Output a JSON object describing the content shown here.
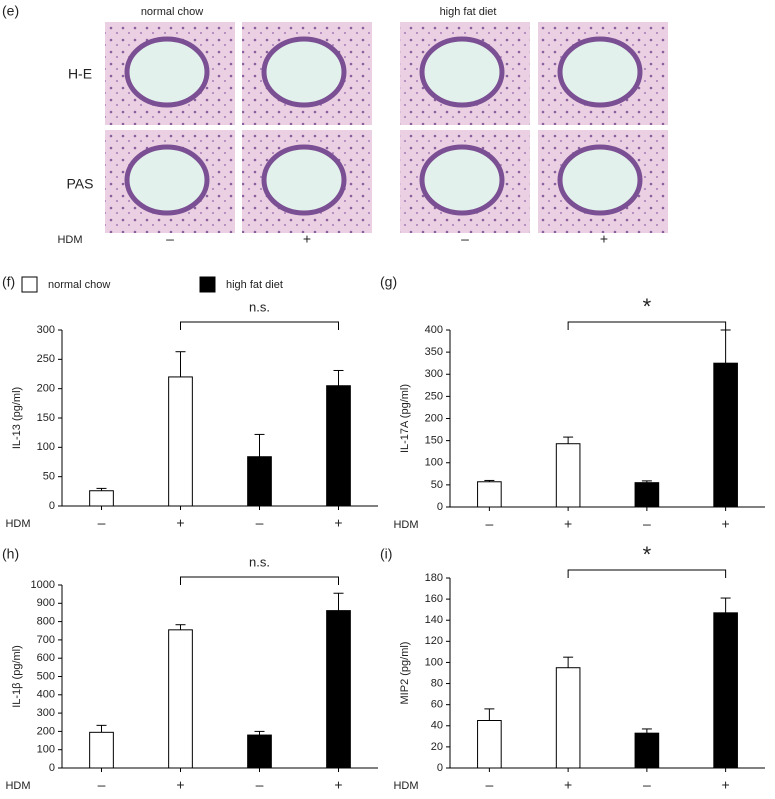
{
  "panel_e": {
    "label": "(e)",
    "groups": [
      "normal chow",
      "high fat diet"
    ],
    "rows": [
      "H-E",
      "PAS"
    ],
    "x_label": "HDM",
    "treatments": [
      "–",
      "+",
      "–",
      "+"
    ]
  },
  "legend": [
    {
      "name": "normal chow",
      "color": "#ffffff"
    },
    {
      "name": "high fat diet",
      "color": "#000000"
    }
  ],
  "chart_data": [
    {
      "type": "bar",
      "panel_label": "(f)",
      "ylabel": "IL-13 (pg/ml)",
      "x_label": "HDM",
      "categories": [
        "–",
        "+",
        "–",
        "+"
      ],
      "values": [
        26,
        220,
        84,
        205
      ],
      "errors": [
        4,
        43,
        38,
        26
      ],
      "colors": [
        "#ffffff",
        "#ffffff",
        "#000000",
        "#000000"
      ],
      "ylim": [
        0,
        300
      ],
      "yticks": [
        0,
        50,
        100,
        150,
        200,
        250,
        300
      ],
      "annotation": "n.s."
    },
    {
      "type": "bar",
      "panel_label": "(g)",
      "ylabel": "IL-17A (pg/ml)",
      "x_label": "HDM",
      "categories": [
        "–",
        "+",
        "–",
        "+"
      ],
      "values": [
        57,
        143,
        55,
        325
      ],
      "errors": [
        3,
        15,
        4,
        75
      ],
      "colors": [
        "#ffffff",
        "#ffffff",
        "#000000",
        "#000000"
      ],
      "ylim": [
        0,
        400
      ],
      "yticks": [
        0,
        50,
        100,
        150,
        200,
        250,
        300,
        350,
        400
      ],
      "annotation": "*"
    },
    {
      "type": "bar",
      "panel_label": "(h)",
      "ylabel": "IL-1β (pg/ml)",
      "x_label": "HDM",
      "categories": [
        "–",
        "+",
        "–",
        "+"
      ],
      "values": [
        195,
        755,
        180,
        860
      ],
      "errors": [
        38,
        28,
        20,
        95
      ],
      "colors": [
        "#ffffff",
        "#ffffff",
        "#000000",
        "#000000"
      ],
      "ylim": [
        0,
        1000
      ],
      "yticks": [
        0,
        100,
        200,
        300,
        400,
        500,
        600,
        700,
        800,
        900,
        1000
      ],
      "annotation": "n.s."
    },
    {
      "type": "bar",
      "panel_label": "(i)",
      "ylabel": "MIP2 (pg/ml)",
      "x_label": "HDM",
      "categories": [
        "–",
        "+",
        "–",
        "+"
      ],
      "values": [
        45,
        95,
        33,
        147
      ],
      "errors": [
        11,
        10,
        4,
        14
      ],
      "colors": [
        "#ffffff",
        "#ffffff",
        "#000000",
        "#000000"
      ],
      "ylim": [
        0,
        180
      ],
      "yticks": [
        0,
        20,
        40,
        60,
        80,
        100,
        120,
        140,
        160,
        180
      ],
      "annotation": "*"
    }
  ]
}
